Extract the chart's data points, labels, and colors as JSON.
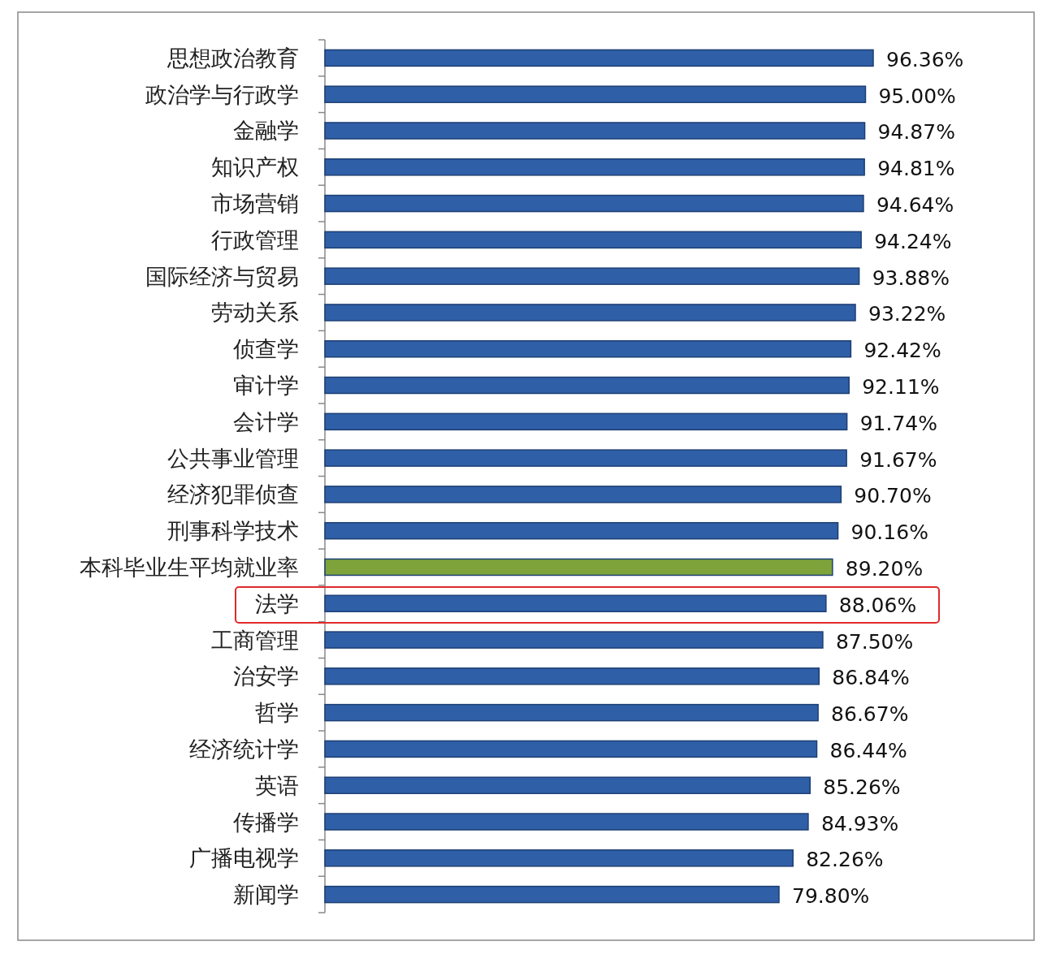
{
  "chart_data": {
    "type": "bar",
    "orientation": "horizontal",
    "categories": [
      "思想政治教育",
      "政治学与行政学",
      "金融学",
      "知识产权",
      "市场营销",
      "行政管理",
      "国际经济与贸易",
      "劳动关系",
      "侦查学",
      "审计学",
      "会计学",
      "公共事业管理",
      "经济犯罪侦查",
      "刑事科学技术",
      "本科毕业生平均就业率",
      "法学",
      "工商管理",
      "治安学",
      "哲学",
      "经济统计学",
      "英语",
      "传播学",
      "广播电视学",
      "新闻学"
    ],
    "values": [
      96.36,
      95.0,
      94.87,
      94.81,
      94.64,
      94.24,
      93.88,
      93.22,
      92.42,
      92.11,
      91.74,
      91.67,
      90.7,
      90.16,
      89.2,
      88.06,
      87.5,
      86.84,
      86.67,
      86.44,
      85.26,
      84.93,
      82.26,
      79.8
    ],
    "value_labels": [
      "96.36%",
      "95.00%",
      "94.87%",
      "94.81%",
      "94.64%",
      "94.24%",
      "93.88%",
      "93.22%",
      "92.42%",
      "92.11%",
      "91.74%",
      "91.67%",
      "90.70%",
      "90.16%",
      "89.20%",
      "88.06%",
      "87.50%",
      "86.84%",
      "86.67%",
      "86.44%",
      "85.26%",
      "84.93%",
      "82.26%",
      "79.80%"
    ],
    "colors": [
      "#2f5fa7",
      "#2f5fa7",
      "#2f5fa7",
      "#2f5fa7",
      "#2f5fa7",
      "#2f5fa7",
      "#2f5fa7",
      "#2f5fa7",
      "#2f5fa7",
      "#2f5fa7",
      "#2f5fa7",
      "#2f5fa7",
      "#2f5fa7",
      "#2f5fa7",
      "#7ea33b",
      "#2f5fa7",
      "#2f5fa7",
      "#2f5fa7",
      "#2f5fa7",
      "#2f5fa7",
      "#2f5fa7",
      "#2f5fa7",
      "#2f5fa7",
      "#2f5fa7"
    ],
    "xlim": [
      0,
      96.36
    ]
  }
}
